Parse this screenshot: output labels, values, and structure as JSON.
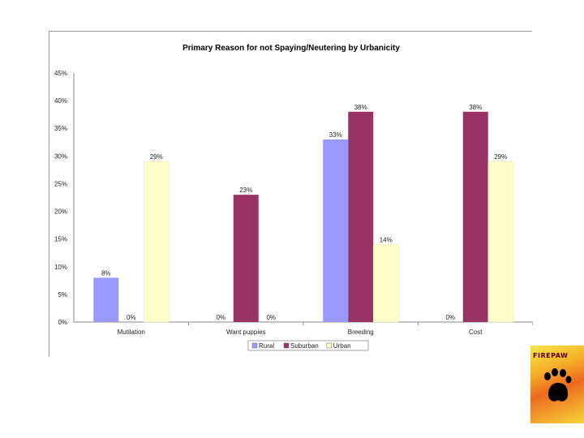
{
  "chart_data": {
    "type": "bar",
    "title": "Primary Reason for not Spaying/Neutering by Urbanicity",
    "categories": [
      "Mutilation",
      "Want puppies",
      "Breeding",
      "Cost"
    ],
    "series": [
      {
        "name": "Rural",
        "color": "#9999ff",
        "values": [
          8,
          0,
          33,
          0
        ],
        "labels": [
          "8%",
          "0%",
          "33%",
          "0%"
        ]
      },
      {
        "name": "Suburban",
        "color": "#993366",
        "values": [
          0,
          23,
          38,
          38
        ],
        "labels": [
          "0%",
          "23%",
          "38%",
          "38%"
        ]
      },
      {
        "name": "Urban",
        "color": "#ffffcc",
        "values": [
          29,
          0,
          14,
          29
        ],
        "labels": [
          "29%",
          "0%",
          "14%",
          "29%"
        ]
      }
    ],
    "ylim": [
      0,
      45
    ],
    "yticks": [
      0,
      5,
      10,
      15,
      20,
      25,
      30,
      35,
      40,
      45
    ],
    "ytick_labels": [
      "0%",
      "5%",
      "10%",
      "15%",
      "20%",
      "25%",
      "30%",
      "35%",
      "40%",
      "45%"
    ],
    "legend_position": "bottom",
    "grid": false
  },
  "logo": {
    "text": "FIREPAW",
    "icon": "paw-icon"
  }
}
